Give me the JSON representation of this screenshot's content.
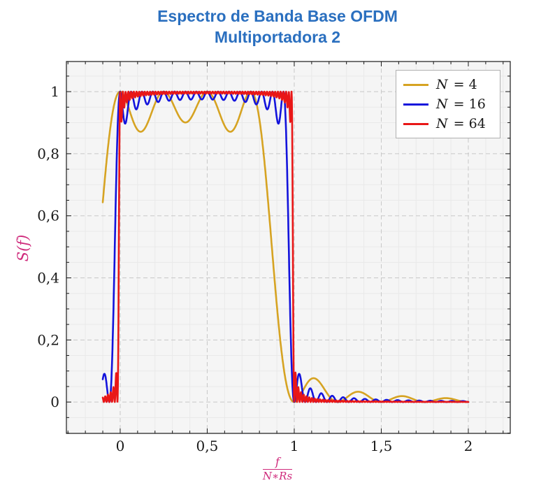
{
  "chart": {
    "title_line1": "Espectro de Banda Base OFDM",
    "title_line2": "Multiportadora 2",
    "ylabel": "S(f)",
    "xlabel_numerator": "f",
    "xlabel_denominator": "N∗Rs",
    "colors": {
      "title": "#2a6fbf",
      "axis_label": "#cf2b7c",
      "frame": "#1a1a1a",
      "tick_label": "#1a1a1a",
      "plot_bg": "#f5f5f5",
      "grid_major": "#c8c8c8",
      "grid_minor": "#e9e9e9",
      "legend_border": "#b0b0b0"
    }
  },
  "chart_data": {
    "type": "line",
    "title": "Espectro de Banda Base OFDM — Multiportadora 2",
    "xlabel": "f/(N*Rs)",
    "ylabel": "S(f)",
    "x_range_data": [
      -0.1,
      2.0
    ],
    "xlim": [
      -0.309,
      2.241
    ],
    "ylim": [
      -0.101,
      1.097
    ],
    "x_ticks": [
      {
        "v": 0,
        "label": "0"
      },
      {
        "v": 0.5,
        "label": "0,5"
      },
      {
        "v": 1,
        "label": "1"
      },
      {
        "v": 1.5,
        "label": "1,5"
      },
      {
        "v": 2,
        "label": "2"
      }
    ],
    "y_ticks": [
      {
        "v": 0,
        "label": "0"
      },
      {
        "v": 0.2,
        "label": "0,2"
      },
      {
        "v": 0.4,
        "label": "0,4"
      },
      {
        "v": 0.6,
        "label": "0,6"
      },
      {
        "v": 0.8,
        "label": "0,8"
      },
      {
        "v": 1,
        "label": "1"
      }
    ],
    "x_minor_tick_step": 0.1,
    "y_minor_tick_step": 0.05,
    "grid": "major-dashed",
    "legend_position": "top-right-inside",
    "model": "S(x) = sum_{k=0}^{N-1} sinc^2(N*x - k), with x = f/(N*Rs) and sinc(u) = sin(pi*u)/(pi*u); flat passband ~1 over 0<=x<1, ripple between subcarriers, sidelobes outside the band",
    "sample_step": 0.0015,
    "series": [
      {
        "name": "N = 4",
        "N": 4,
        "color": "#d6a322",
        "stroke_width": 2.6
      },
      {
        "name": "N = 16",
        "N": 16,
        "color": "#1313dc",
        "stroke_width": 2.6
      },
      {
        "name": "N = 64",
        "N": 64,
        "color": "#e91717",
        "stroke_width": 2.6
      }
    ],
    "key_values": {
      "plateau_level": 1.0,
      "band_edges_normalized": [
        0,
        1
      ],
      "N4_value_at_x_-0.1": 0.64,
      "N4_ripple_min": 0.87,
      "N16_ripple_min": 0.95,
      "N4_first_sidelobe_peak": 0.07,
      "sidelobe_nulls_at": [
        1.25,
        1.5,
        1.75,
        2.0
      ]
    }
  }
}
